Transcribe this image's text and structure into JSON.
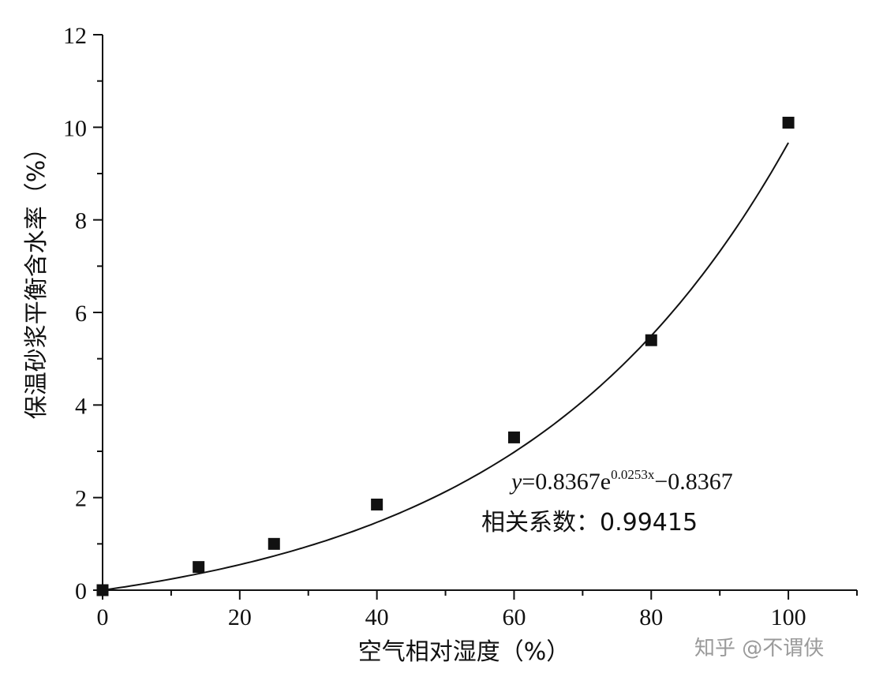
{
  "chart_data": {
    "type": "scatter",
    "title": "",
    "xlabel": "空气相对湿度（%）",
    "ylabel": "保温砂浆平衡含水率（%）",
    "xlim": [
      0,
      110
    ],
    "ylim": [
      0,
      12
    ],
    "x_ticks": [
      0,
      20,
      40,
      60,
      80,
      100
    ],
    "y_ticks": [
      0,
      2,
      4,
      6,
      8,
      10,
      12
    ],
    "grid": false,
    "series": [
      {
        "marker": "square",
        "color": "#111111",
        "x": [
          0,
          14,
          25,
          40,
          60,
          80,
          100
        ],
        "y": [
          0,
          0.5,
          1.0,
          1.85,
          3.3,
          5.4,
          10.1
        ]
      }
    ],
    "fit": {
      "type": "exponential",
      "a": 0.8367,
      "b": 0.0253,
      "c": -0.8367,
      "x_range": [
        0,
        100
      ]
    },
    "annotations": {
      "equation_prefix": "y",
      "equation_mid": "=0.8367e",
      "equation_exp": "0.0253x",
      "equation_suffix": "−0.8367",
      "correlation": "相关系数：0.99415"
    }
  },
  "watermark": "知乎 @不谓侠"
}
